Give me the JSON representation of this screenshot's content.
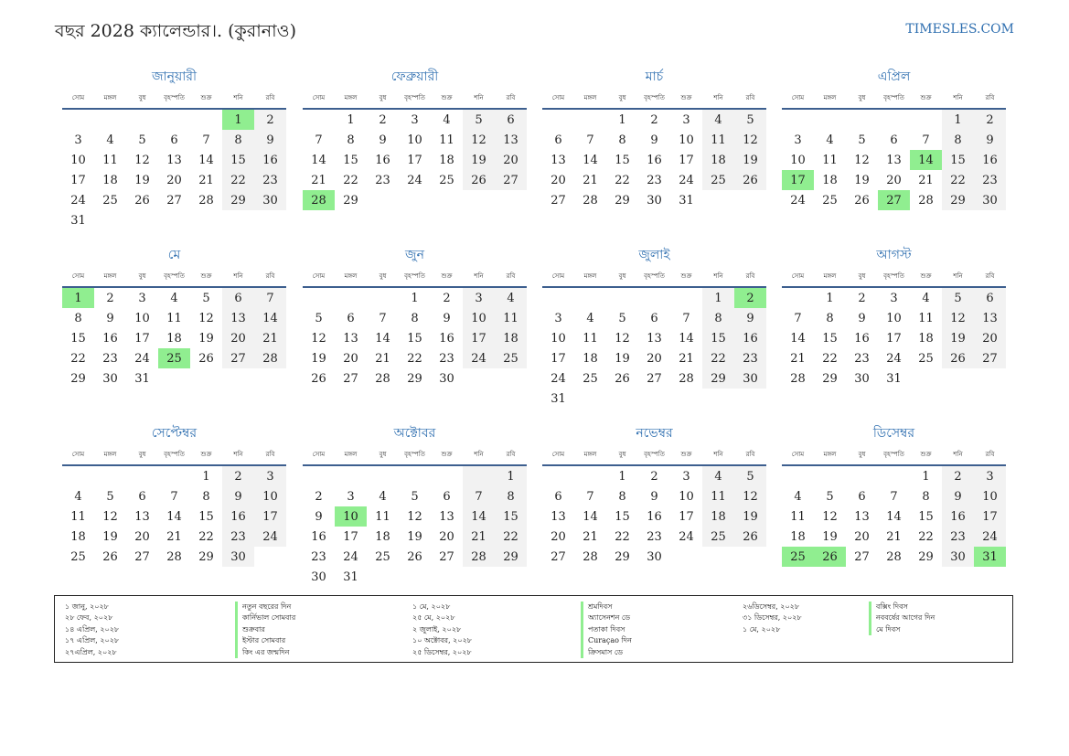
{
  "title": "বছর 2028 ক্যালেন্ডার।. (কুরানাও)",
  "site": "TIMESLES.COM",
  "colors": {
    "accent": "#2f6fb0",
    "holiday": "#90ee90",
    "weekend": "#f2f2f2",
    "rule": "#3d5f8f"
  },
  "weekdays": [
    "সোম",
    "মঙ্গল",
    "বুধ",
    "বৃহস্পতি",
    "শুক্র",
    "শনি",
    "রবি"
  ],
  "months": [
    {
      "name": "জানুয়ারী",
      "offset": 5,
      "days": 31,
      "holidays": [
        1
      ]
    },
    {
      "name": "ফেব্রুয়ারী",
      "offset": 1,
      "days": 29,
      "holidays": [
        28
      ]
    },
    {
      "name": "মার্চ",
      "offset": 2,
      "days": 31,
      "holidays": []
    },
    {
      "name": "এপ্রিল",
      "offset": 5,
      "days": 30,
      "holidays": [
        14,
        17,
        27
      ]
    },
    {
      "name": "মে",
      "offset": 0,
      "days": 31,
      "holidays": [
        1,
        25
      ]
    },
    {
      "name": "জুন",
      "offset": 3,
      "days": 30,
      "holidays": []
    },
    {
      "name": "জুলাই",
      "offset": 5,
      "days": 31,
      "holidays": [
        2
      ]
    },
    {
      "name": "আগস্ট",
      "offset": 1,
      "days": 31,
      "holidays": []
    },
    {
      "name": "সেপ্টেম্বর",
      "offset": 4,
      "days": 30,
      "holidays": []
    },
    {
      "name": "অক্টোবর",
      "offset": 6,
      "days": 31,
      "holidays": [
        10
      ]
    },
    {
      "name": "নভেম্বর",
      "offset": 2,
      "days": 30,
      "holidays": []
    },
    {
      "name": "ডিসেম্বর",
      "offset": 4,
      "days": 31,
      "holidays": [
        25,
        26,
        31
      ]
    }
  ],
  "legend": {
    "col1_dates": [
      "১ জানু, ২০২৮",
      "২৮ ফেব, ২০২৮",
      "১৪ এপ্রিল, ২০২৮",
      "১৭ এপ্রিল, ২০২৮",
      "২৭এপ্রিল, ২০২৮"
    ],
    "col1_names": [
      "নতুন বছরের দিন",
      "কার্নিভাল সোমবার",
      "শুক্রবার",
      "ইস্টার সোমবার",
      "কিং এর জন্মদিন"
    ],
    "col2_dates": [
      "১ মে, ২০২৮",
      "২৫ মে, ২০২৮",
      "২ জুলাই, ২০২৮",
      "১০ অক্টোবর, ২০২৮",
      "২৫ ডিসেম্বর, ২০২৮"
    ],
    "col2_names": [
      "শ্রমদিবস",
      "অ্যাসেনশন ডে",
      "পতাকা দিবস",
      "Curaçao দিন",
      "ক্রিসমাস ডে"
    ],
    "col3_dates": [
      "২৬ডিসেম্বর, ২০২৮",
      "৩১ ডিসেম্বর, ২০২৮",
      "১ মে, ২০২৮"
    ],
    "col3_names": [
      "বক্সিং দিবস",
      "নববর্ষের আগের দিন",
      "মে দিবস"
    ]
  }
}
